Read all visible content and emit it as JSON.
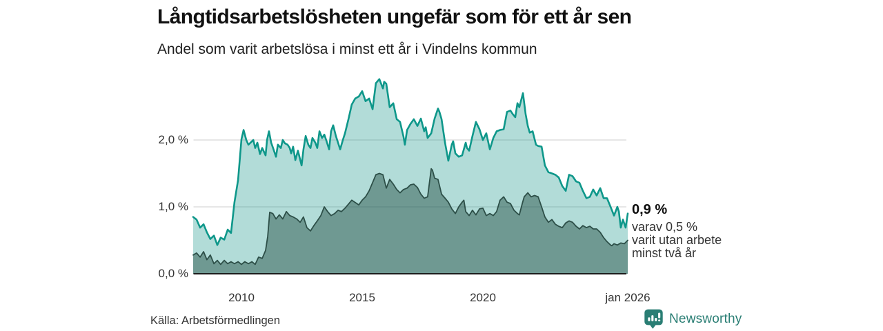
{
  "header": {
    "title": "Långtidsarbetslösheten ungefär som för ett år sen",
    "subtitle": "Andel som varit arbetslösa i minst ett år i Vindelns kommun"
  },
  "chart_data": {
    "type": "area",
    "title": "Långtidsarbetslösheten ungefär som för ett år sen",
    "subtitle": "Andel som varit arbetslösa i minst ett år i Vindelns kommun",
    "unit": "%",
    "grid": "horizontal",
    "x_axis": {
      "range": [
        2008.0,
        2026.08
      ],
      "ticks": [
        {
          "label": "2010",
          "year": 2010
        },
        {
          "label": "2015",
          "year": 2015
        },
        {
          "label": "2020",
          "year": 2020
        },
        {
          "label": "jan 2026",
          "year": 2026
        }
      ]
    },
    "y_axis": {
      "range": [
        0,
        3.0
      ],
      "ticks": [
        {
          "label": "0,0 %",
          "value": 0
        },
        {
          "label": "1,0 %",
          "value": 1
        },
        {
          "label": "2,0 %",
          "value": 2
        }
      ]
    },
    "series": [
      {
        "name": "Andel arbetslösa minst ett år",
        "line_color": "#0e978a",
        "fill_color": "rgba(21,148,136,0.33)",
        "line_width": 2.6,
        "latest_value": 0.9,
        "points": [
          [
            2008.0,
            0.85
          ],
          [
            2008.14,
            0.81
          ],
          [
            2008.29,
            0.69
          ],
          [
            2008.43,
            0.74
          ],
          [
            2008.57,
            0.62
          ],
          [
            2008.71,
            0.52
          ],
          [
            2008.86,
            0.57
          ],
          [
            2009.0,
            0.43
          ],
          [
            2009.14,
            0.54
          ],
          [
            2009.29,
            0.51
          ],
          [
            2009.43,
            0.66
          ],
          [
            2009.57,
            0.61
          ],
          [
            2009.71,
            1.07
          ],
          [
            2009.86,
            1.4
          ],
          [
            2010.0,
            2.01
          ],
          [
            2010.09,
            2.15
          ],
          [
            2010.2,
            2.0
          ],
          [
            2010.29,
            1.93
          ],
          [
            2010.49,
            2.0
          ],
          [
            2010.57,
            1.88
          ],
          [
            2010.66,
            1.96
          ],
          [
            2010.77,
            1.79
          ],
          [
            2010.86,
            1.88
          ],
          [
            2011.0,
            1.77
          ],
          [
            2011.06,
            2.0
          ],
          [
            2011.14,
            2.13
          ],
          [
            2011.23,
            1.96
          ],
          [
            2011.31,
            1.88
          ],
          [
            2011.43,
            1.75
          ],
          [
            2011.51,
            1.93
          ],
          [
            2011.63,
            1.88
          ],
          [
            2011.71,
            2.0
          ],
          [
            2011.8,
            1.95
          ],
          [
            2011.91,
            1.93
          ],
          [
            2012.0,
            1.88
          ],
          [
            2012.06,
            1.8
          ],
          [
            2012.14,
            1.9
          ],
          [
            2012.23,
            1.7
          ],
          [
            2012.34,
            1.84
          ],
          [
            2012.49,
            1.62
          ],
          [
            2012.57,
            1.86
          ],
          [
            2012.66,
            2.06
          ],
          [
            2012.77,
            1.93
          ],
          [
            2012.86,
            1.88
          ],
          [
            2012.94,
            2.03
          ],
          [
            2013.06,
            1.96
          ],
          [
            2013.14,
            1.88
          ],
          [
            2013.23,
            2.13
          ],
          [
            2013.34,
            2.03
          ],
          [
            2013.43,
            2.08
          ],
          [
            2013.51,
            2.0
          ],
          [
            2013.63,
            1.86
          ],
          [
            2013.71,
            2.13
          ],
          [
            2013.8,
            2.22
          ],
          [
            2013.91,
            2.06
          ],
          [
            2014.0,
            1.96
          ],
          [
            2014.09,
            1.86
          ],
          [
            2014.2,
            2.0
          ],
          [
            2014.29,
            2.1
          ],
          [
            2014.43,
            2.31
          ],
          [
            2014.57,
            2.53
          ],
          [
            2014.71,
            2.62
          ],
          [
            2014.86,
            2.65
          ],
          [
            2015.0,
            2.73
          ],
          [
            2015.14,
            2.58
          ],
          [
            2015.29,
            2.62
          ],
          [
            2015.43,
            2.46
          ],
          [
            2015.57,
            2.85
          ],
          [
            2015.71,
            2.91
          ],
          [
            2015.86,
            2.77
          ],
          [
            2015.91,
            2.87
          ],
          [
            2016.0,
            2.84
          ],
          [
            2016.14,
            2.49
          ],
          [
            2016.29,
            2.55
          ],
          [
            2016.43,
            2.31
          ],
          [
            2016.57,
            2.27
          ],
          [
            2016.71,
            2.05
          ],
          [
            2016.77,
            1.93
          ],
          [
            2016.86,
            2.15
          ],
          [
            2017.0,
            2.24
          ],
          [
            2017.14,
            2.31
          ],
          [
            2017.29,
            2.21
          ],
          [
            2017.43,
            2.32
          ],
          [
            2017.57,
            2.13
          ],
          [
            2017.63,
            2.19
          ],
          [
            2017.71,
            2.03
          ],
          [
            2017.86,
            2.1
          ],
          [
            2018.0,
            2.32
          ],
          [
            2018.14,
            2.47
          ],
          [
            2018.2,
            2.42
          ],
          [
            2018.29,
            2.31
          ],
          [
            2018.43,
            1.96
          ],
          [
            2018.57,
            1.69
          ],
          [
            2018.71,
            1.93
          ],
          [
            2018.77,
            1.98
          ],
          [
            2018.86,
            1.8
          ],
          [
            2019.0,
            1.75
          ],
          [
            2019.14,
            1.77
          ],
          [
            2019.29,
            1.96
          ],
          [
            2019.34,
            1.88
          ],
          [
            2019.43,
            1.84
          ],
          [
            2019.57,
            2.06
          ],
          [
            2019.71,
            2.27
          ],
          [
            2019.86,
            2.16
          ],
          [
            2020.0,
            2.0
          ],
          [
            2020.14,
            2.1
          ],
          [
            2020.29,
            1.86
          ],
          [
            2020.43,
            2.03
          ],
          [
            2020.57,
            2.13
          ],
          [
            2020.71,
            2.15
          ],
          [
            2020.86,
            2.16
          ],
          [
            2021.0,
            2.42
          ],
          [
            2021.14,
            2.44
          ],
          [
            2021.23,
            2.39
          ],
          [
            2021.34,
            2.34
          ],
          [
            2021.43,
            2.55
          ],
          [
            2021.51,
            2.49
          ],
          [
            2021.66,
            2.7
          ],
          [
            2021.77,
            2.39
          ],
          [
            2021.86,
            2.21
          ],
          [
            2021.94,
            2.11
          ],
          [
            2022.06,
            2.13
          ],
          [
            2022.2,
            1.93
          ],
          [
            2022.29,
            1.91
          ],
          [
            2022.43,
            1.9
          ],
          [
            2022.57,
            1.62
          ],
          [
            2022.71,
            1.52
          ],
          [
            2022.86,
            1.5
          ],
          [
            2023.0,
            1.48
          ],
          [
            2023.14,
            1.44
          ],
          [
            2023.29,
            1.31
          ],
          [
            2023.43,
            1.24
          ],
          [
            2023.57,
            1.48
          ],
          [
            2023.71,
            1.46
          ],
          [
            2023.86,
            1.38
          ],
          [
            2024.0,
            1.36
          ],
          [
            2024.14,
            1.24
          ],
          [
            2024.29,
            1.13
          ],
          [
            2024.43,
            1.15
          ],
          [
            2024.57,
            1.26
          ],
          [
            2024.71,
            1.17
          ],
          [
            2024.86,
            1.28
          ],
          [
            2025.0,
            1.13
          ],
          [
            2025.14,
            1.13
          ],
          [
            2025.29,
            1.0
          ],
          [
            2025.43,
            0.87
          ],
          [
            2025.57,
            1.0
          ],
          [
            2025.63,
            0.93
          ],
          [
            2025.71,
            0.69
          ],
          [
            2025.8,
            0.81
          ],
          [
            2025.91,
            0.69
          ],
          [
            2026.0,
            0.9
          ]
        ]
      },
      {
        "name": "varav arbetslösa minst två år",
        "line_color": "#2d4f48",
        "fill_color": "rgba(28,70,62,0.45)",
        "line_width": 1.8,
        "latest_value": 0.5,
        "points": [
          [
            2008.0,
            0.28
          ],
          [
            2008.14,
            0.31
          ],
          [
            2008.29,
            0.25
          ],
          [
            2008.43,
            0.33
          ],
          [
            2008.57,
            0.21
          ],
          [
            2008.71,
            0.28
          ],
          [
            2008.86,
            0.15
          ],
          [
            2009.0,
            0.2
          ],
          [
            2009.14,
            0.14
          ],
          [
            2009.29,
            0.2
          ],
          [
            2009.43,
            0.15
          ],
          [
            2009.57,
            0.18
          ],
          [
            2009.71,
            0.15
          ],
          [
            2009.86,
            0.18
          ],
          [
            2010.0,
            0.14
          ],
          [
            2010.14,
            0.18
          ],
          [
            2010.29,
            0.15
          ],
          [
            2010.43,
            0.18
          ],
          [
            2010.57,
            0.14
          ],
          [
            2010.71,
            0.25
          ],
          [
            2010.86,
            0.23
          ],
          [
            2011.0,
            0.35
          ],
          [
            2011.09,
            0.56
          ],
          [
            2011.17,
            0.92
          ],
          [
            2011.3,
            0.9
          ],
          [
            2011.43,
            0.82
          ],
          [
            2011.57,
            0.88
          ],
          [
            2011.71,
            0.82
          ],
          [
            2011.86,
            0.93
          ],
          [
            2012.0,
            0.87
          ],
          [
            2012.14,
            0.85
          ],
          [
            2012.29,
            0.82
          ],
          [
            2012.43,
            0.77
          ],
          [
            2012.57,
            0.85
          ],
          [
            2012.71,
            0.69
          ],
          [
            2012.86,
            0.64
          ],
          [
            2013.0,
            0.72
          ],
          [
            2013.14,
            0.79
          ],
          [
            2013.29,
            0.87
          ],
          [
            2013.43,
            1.0
          ],
          [
            2013.57,
            0.93
          ],
          [
            2013.71,
            0.87
          ],
          [
            2013.86,
            0.9
          ],
          [
            2014.0,
            0.95
          ],
          [
            2014.14,
            0.93
          ],
          [
            2014.29,
            0.98
          ],
          [
            2014.57,
            1.1
          ],
          [
            2014.86,
            1.03
          ],
          [
            2015.0,
            1.1
          ],
          [
            2015.14,
            1.15
          ],
          [
            2015.29,
            1.24
          ],
          [
            2015.57,
            1.48
          ],
          [
            2015.71,
            1.5
          ],
          [
            2015.86,
            1.48
          ],
          [
            2016.0,
            1.28
          ],
          [
            2016.14,
            1.41
          ],
          [
            2016.29,
            1.34
          ],
          [
            2016.43,
            1.26
          ],
          [
            2016.57,
            1.21
          ],
          [
            2016.71,
            1.26
          ],
          [
            2016.86,
            1.28
          ],
          [
            2017.0,
            1.33
          ],
          [
            2017.14,
            1.34
          ],
          [
            2017.29,
            1.29
          ],
          [
            2017.43,
            1.19
          ],
          [
            2017.57,
            1.13
          ],
          [
            2017.71,
            1.15
          ],
          [
            2017.86,
            1.57
          ],
          [
            2017.91,
            1.55
          ],
          [
            2018.0,
            1.43
          ],
          [
            2018.14,
            1.41
          ],
          [
            2018.29,
            1.19
          ],
          [
            2018.43,
            1.13
          ],
          [
            2018.57,
            1.07
          ],
          [
            2018.71,
            0.97
          ],
          [
            2018.86,
            0.9
          ],
          [
            2019.0,
            1.0
          ],
          [
            2019.14,
            1.07
          ],
          [
            2019.21,
            1.1
          ],
          [
            2019.29,
            0.93
          ],
          [
            2019.43,
            0.87
          ],
          [
            2019.57,
            0.95
          ],
          [
            2019.71,
            0.88
          ],
          [
            2019.86,
            0.97
          ],
          [
            2020.0,
            0.98
          ],
          [
            2020.14,
            0.87
          ],
          [
            2020.29,
            0.9
          ],
          [
            2020.43,
            0.87
          ],
          [
            2020.57,
            0.93
          ],
          [
            2020.71,
            1.1
          ],
          [
            2020.86,
            1.15
          ],
          [
            2021.0,
            1.07
          ],
          [
            2021.14,
            1.05
          ],
          [
            2021.29,
            0.95
          ],
          [
            2021.43,
            0.9
          ],
          [
            2021.51,
            0.88
          ],
          [
            2021.63,
            1.05
          ],
          [
            2021.71,
            1.15
          ],
          [
            2021.86,
            1.21
          ],
          [
            2022.0,
            1.15
          ],
          [
            2022.14,
            1.17
          ],
          [
            2022.29,
            1.15
          ],
          [
            2022.43,
            1.0
          ],
          [
            2022.57,
            0.85
          ],
          [
            2022.71,
            0.77
          ],
          [
            2022.86,
            0.81
          ],
          [
            2023.0,
            0.74
          ],
          [
            2023.14,
            0.71
          ],
          [
            2023.29,
            0.69
          ],
          [
            2023.43,
            0.76
          ],
          [
            2023.57,
            0.79
          ],
          [
            2023.71,
            0.77
          ],
          [
            2023.86,
            0.71
          ],
          [
            2024.0,
            0.67
          ],
          [
            2024.14,
            0.72
          ],
          [
            2024.29,
            0.69
          ],
          [
            2024.43,
            0.71
          ],
          [
            2024.57,
            0.67
          ],
          [
            2024.71,
            0.67
          ],
          [
            2024.86,
            0.62
          ],
          [
            2025.0,
            0.54
          ],
          [
            2025.14,
            0.48
          ],
          [
            2025.29,
            0.43
          ],
          [
            2025.34,
            0.42
          ],
          [
            2025.43,
            0.45
          ],
          [
            2025.57,
            0.43
          ],
          [
            2025.71,
            0.46
          ],
          [
            2025.86,
            0.45
          ],
          [
            2026.0,
            0.5
          ]
        ]
      }
    ],
    "annotation": {
      "headline": "0,9 %",
      "lines": [
        "varav 0,5 %",
        "varit utan arbete",
        "minst två år"
      ]
    },
    "colors": {
      "gridline": "#d8d8d8",
      "axis_line": "#1c1c1c",
      "tick_text": "#333333"
    }
  },
  "footer": {
    "source": "Källa: Arbetsförmedlingen",
    "brand": "Newsworthy",
    "brand_color": "#2a7e74"
  }
}
